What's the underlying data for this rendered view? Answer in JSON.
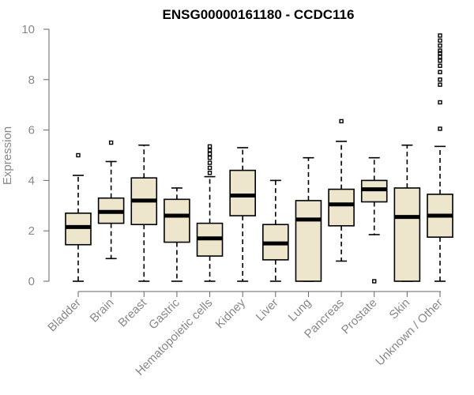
{
  "chart_data": {
    "type": "boxplot",
    "title": "ENSG00000161180 - CCDC116",
    "ylabel": "Expression",
    "xlabel": "",
    "ylim": [
      0,
      10
    ],
    "yticks": [
      0,
      2,
      4,
      6,
      8,
      10
    ],
    "colors": {
      "box_fill": "#ede6cd",
      "box_stroke": "#000000",
      "axis": "#666666",
      "label": "#888888"
    },
    "categories": [
      "Bladder",
      "Brain",
      "Breast",
      "Gastric",
      "Hematopoietic cells",
      "Kidney",
      "Liver",
      "Lung",
      "Pancreas",
      "Prostate",
      "Skin",
      "Unknown / Other"
    ],
    "boxes": [
      {
        "category": "Bladder",
        "whisker_low": 0.0,
        "q1": 1.45,
        "median": 2.15,
        "q3": 2.7,
        "whisker_high": 4.2,
        "outliers": [
          5.0
        ]
      },
      {
        "category": "Brain",
        "whisker_low": 0.9,
        "q1": 2.3,
        "median": 2.75,
        "q3": 3.3,
        "whisker_high": 4.75,
        "outliers": [
          5.5
        ]
      },
      {
        "category": "Breast",
        "whisker_low": 0.0,
        "q1": 2.25,
        "median": 3.2,
        "q3": 4.1,
        "whisker_high": 5.4,
        "outliers": []
      },
      {
        "category": "Gastric",
        "whisker_low": 0.0,
        "q1": 1.55,
        "median": 2.6,
        "q3": 3.25,
        "whisker_high": 3.7,
        "outliers": []
      },
      {
        "category": "Hematopoietic cells",
        "whisker_low": 0.0,
        "q1": 1.0,
        "median": 1.7,
        "q3": 2.3,
        "whisker_high": 4.15,
        "outliers": [
          4.3,
          4.5,
          4.7,
          4.9,
          5.05,
          5.2,
          5.35
        ]
      },
      {
        "category": "Kidney",
        "whisker_low": 0.0,
        "q1": 2.6,
        "median": 3.4,
        "q3": 4.4,
        "whisker_high": 5.3,
        "outliers": []
      },
      {
        "category": "Liver",
        "whisker_low": 0.0,
        "q1": 0.85,
        "median": 1.5,
        "q3": 2.25,
        "whisker_high": 4.0,
        "outliers": []
      },
      {
        "category": "Lung",
        "whisker_low": 0.0,
        "q1": 0.0,
        "median": 2.45,
        "q3": 3.2,
        "whisker_high": 4.9,
        "outliers": []
      },
      {
        "category": "Pancreas",
        "whisker_low": 0.8,
        "q1": 2.2,
        "median": 3.05,
        "q3": 3.65,
        "whisker_high": 5.55,
        "outliers": [
          6.35
        ]
      },
      {
        "category": "Prostate",
        "whisker_low": 1.85,
        "q1": 3.15,
        "median": 3.65,
        "q3": 4.0,
        "whisker_high": 4.9,
        "outliers": [
          0.0
        ]
      },
      {
        "category": "Skin",
        "whisker_low": 0.0,
        "q1": 0.0,
        "median": 2.55,
        "q3": 3.7,
        "whisker_high": 5.4,
        "outliers": []
      },
      {
        "category": "Unknown / Other",
        "whisker_low": 0.0,
        "q1": 1.75,
        "median": 2.6,
        "q3": 3.45,
        "whisker_high": 5.35,
        "outliers": [
          6.05,
          7.1,
          7.8,
          8.0,
          8.3,
          8.55,
          8.75,
          8.9,
          9.05,
          9.15,
          9.35,
          9.55,
          9.75
        ]
      }
    ]
  }
}
